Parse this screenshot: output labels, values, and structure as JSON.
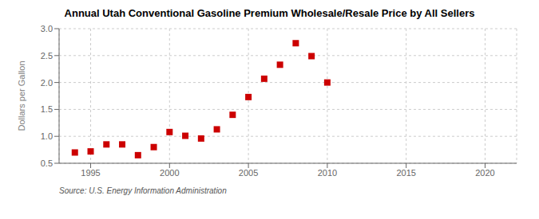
{
  "chart_data": {
    "type": "scatter",
    "title": "Annual Utah Conventional Gasoline Premium Wholesale/Resale Price by All Sellers",
    "ylabel": "Dollars per Gallon",
    "annotation": "Source: U.S. Energy Information Administration",
    "x": [
      1994,
      1995,
      1996,
      1997,
      1998,
      1999,
      2000,
      2001,
      2002,
      2003,
      2004,
      2005,
      2006,
      2007,
      2008,
      2009,
      2010
    ],
    "values": [
      0.7,
      0.72,
      0.85,
      0.85,
      0.65,
      0.8,
      1.08,
      1.01,
      0.96,
      1.13,
      1.4,
      1.73,
      2.07,
      2.33,
      2.73,
      2.49,
      2.0
    ],
    "color": "#cc0000",
    "marker": "square",
    "xlim": [
      1993,
      2022
    ],
    "ylim": [
      0.5,
      3.0
    ],
    "xticks": [
      1995,
      2000,
      2005,
      2010,
      2015,
      2020
    ],
    "yticks": [
      0.5,
      {
        "value": 1,
        "label": "1.0"
      },
      1.5,
      {
        "value": 2,
        "label": "2.0"
      },
      2.5,
      {
        "value": 3,
        "label": "3.0"
      }
    ],
    "grid": true
  }
}
